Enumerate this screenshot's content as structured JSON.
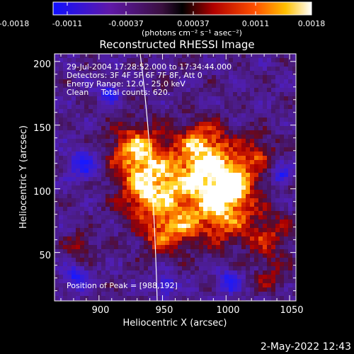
{
  "colorbar": {
    "tick_labels": [
      "-0.0018",
      "-0.0011",
      "-0.00037",
      "0.00037",
      "0.0011",
      "0.0018"
    ],
    "unit_label": "(photons cm⁻² s⁻¹ asec⁻²)",
    "range": [
      -0.0018,
      0.0018
    ]
  },
  "title": "Reconstructed RHESSI Image",
  "info_lines": [
    "29-Jul-2004 17:28:52.000 to 17:34:44.000",
    "Detectors: 3F 4F 5F 6F 7F 8F, Att 0",
    "Energy Range: 12.0 - 25.0 keV",
    "Clean     Total counts: 620."
  ],
  "peak_label": "Position of Peak = [988,192]",
  "axes": {
    "xlabel": "Heliocentric X (arcsec)",
    "ylabel": "Heliocentric Y (arcsec)",
    "xlim": [
      865,
      1055
    ],
    "ylim": [
      12,
      206
    ],
    "x_ticks": [
      900,
      950,
      1000,
      1050
    ],
    "y_ticks": [
      50,
      100,
      150,
      200
    ]
  },
  "timestamp": "2-May-2022 12:43",
  "colors": {
    "background": "#000000",
    "text": "#ffffff",
    "limb_line": "#ffffff"
  }
}
